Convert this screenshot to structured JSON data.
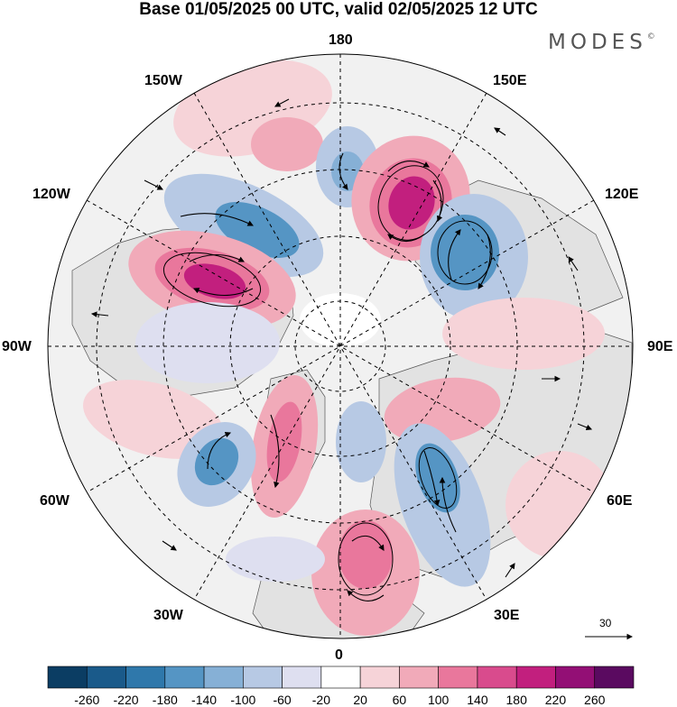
{
  "title": "Base 01/05/2025 00 UTC, valid 02/05/2025 12 UTC",
  "brand": {
    "name": "MODES",
    "mark": "©"
  },
  "longitude_labels": {
    "top": "180",
    "bottom": "0",
    "left": "90W",
    "right": "90E",
    "upper_left_1": "150W",
    "upper_left_2": "120W",
    "upper_right_1": "150E",
    "upper_right_2": "120E",
    "lower_left_1": "60W",
    "lower_left_2": "30W",
    "lower_right_1": "60E",
    "lower_right_2": "30E"
  },
  "vector_reference": "30",
  "colorbar": {
    "ticks": [
      "-260",
      "-220",
      "-180",
      "-140",
      "-100",
      "-60",
      "-20",
      "20",
      "60",
      "100",
      "140",
      "180",
      "220",
      "260"
    ],
    "colors": [
      "#0b3d63",
      "#1a5a8a",
      "#2f78ab",
      "#5595c4",
      "#86b0d6",
      "#b7c9e4",
      "#dedff0",
      "#ffffff",
      "#f6d3d8",
      "#f1aab9",
      "#e9779c",
      "#d94b8d",
      "#c21f7e",
      "#930f75",
      "#5a0a60"
    ]
  },
  "anomaly_centers": [
    {
      "lon": "150E-120E",
      "sign": "positive",
      "level": 200
    },
    {
      "lon": "120W",
      "sign": "positive",
      "level": 180
    },
    {
      "lon": "120E-90E",
      "sign": "negative",
      "level": -160
    },
    {
      "lon": "150W-120W",
      "sign": "negative",
      "level": -120
    },
    {
      "lon": "0",
      "sign": "positive",
      "level": 150
    },
    {
      "lon": "30E",
      "sign": "negative",
      "level": -140
    },
    {
      "lon": "60W",
      "sign": "negative",
      "level": -130
    },
    {
      "lon": "45W",
      "sign": "positive",
      "level": 130
    }
  ]
}
